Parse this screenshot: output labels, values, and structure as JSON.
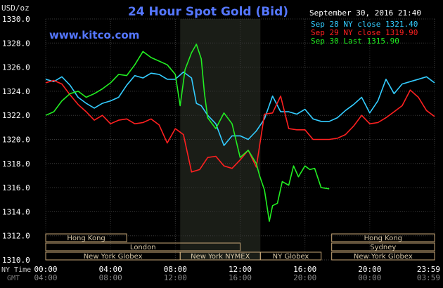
{
  "chart_data": {
    "type": "line",
    "title": "24 Hour Spot Gold (Bid)",
    "watermark": "www.kitco.com",
    "timestamp": "September 30, 2016 21:40",
    "yunit": "USD/oz",
    "ylim": [
      1310,
      1330
    ],
    "yticks": [
      "1330.0",
      "1328.0",
      "1326.0",
      "1324.0",
      "1322.0",
      "1320.0",
      "1318.0",
      "1316.0",
      "1314.0",
      "1312.0",
      "1310.0"
    ],
    "x_ticks_ny": [
      "00:00",
      "04:00",
      "08:00",
      "12:00",
      "16:00",
      "20:00",
      "23:59"
    ],
    "x_ticks_gmt": [
      "04:00",
      "08:00",
      "12:00",
      "16:00",
      "20:00",
      "00:00",
      "03:59"
    ],
    "ny_time_label": "NY Time",
    "gmt_label": "GMT",
    "legend": [
      {
        "label": "Sep 28 NY close 1321.40",
        "color": "#33ccff"
      },
      {
        "label": "Sep 29 NY close 1319.90",
        "color": "#ff2020"
      },
      {
        "label": "Sep 30 Last 1315.90",
        "color": "#22ee22"
      }
    ],
    "highlight_hours": [
      8.3,
      13.25
    ],
    "sessions": [
      {
        "label": "Hong Kong",
        "start": 0,
        "end": 5
      },
      {
        "label": "Hong Kong",
        "start": 17.65,
        "end": 24
      },
      {
        "label": "London",
        "start": 0,
        "end": 12
      },
      {
        "label": "Sydney",
        "start": 17.65,
        "end": 24
      },
      {
        "label": "New York Globex",
        "start": 0,
        "end": 8.3
      },
      {
        "label": "New York NYMEX",
        "start": 8.3,
        "end": 13.25
      },
      {
        "label": "NY Globex",
        "start": 13.25,
        "end": 17.0
      },
      {
        "label": "New York Globex",
        "start": 17.65,
        "end": 24
      }
    ],
    "series": [
      {
        "name": "Sep 28 NY close 1321.40",
        "color": "#33ccff",
        "x": [
          0,
          0.5,
          1,
          1.5,
          2,
          2.5,
          3,
          3.5,
          4,
          4.5,
          5,
          5.5,
          6,
          6.5,
          7,
          7.5,
          8,
          8.5,
          9,
          9.3,
          9.6,
          10,
          10.5,
          11,
          11.5,
          12,
          12.5,
          13,
          13.5,
          14,
          14.5,
          15,
          15.5,
          16,
          16.5,
          17,
          17.5,
          18,
          18.5,
          19,
          19.5,
          20,
          20.5,
          21,
          21.5,
          22,
          22.5,
          23,
          23.5,
          24
        ],
        "y": [
          1325,
          1324.8,
          1325.2,
          1324.5,
          1323.5,
          1323,
          1322.6,
          1323,
          1323.2,
          1323.5,
          1324.5,
          1325.3,
          1325.1,
          1325.5,
          1325.4,
          1325,
          1325,
          1325.6,
          1325.1,
          1323,
          1322.8,
          1322,
          1321.3,
          1319.5,
          1320.3,
          1320.3,
          1320,
          1320.7,
          1321.7,
          1323.6,
          1322.3,
          1322.3,
          1322.1,
          1322.5,
          1321.7,
          1321.5,
          1321.5,
          1321.8,
          1322.4,
          1322.9,
          1323.5,
          1322.2,
          1323.2,
          1325,
          1323.8,
          1324.6,
          1324.8,
          1325,
          1325.2,
          1324.7
        ]
      },
      {
        "name": "Sep 29 NY close 1319.90",
        "color": "#ff2020",
        "x": [
          0,
          0.5,
          1,
          1.5,
          2,
          2.5,
          3,
          3.5,
          4,
          4.5,
          5,
          5.5,
          6,
          6.5,
          7,
          7.5,
          8,
          8.5,
          9,
          9.5,
          10,
          10.5,
          11,
          11.5,
          12,
          12.5,
          13,
          13.5,
          14,
          14.5,
          15,
          15.5,
          16,
          16.5,
          17,
          17.5,
          18,
          18.5,
          19,
          19.5,
          20,
          20.5,
          21,
          21.5,
          22,
          22.5,
          23,
          23.5,
          24
        ],
        "y": [
          1324.7,
          1324.9,
          1324.6,
          1323.7,
          1322.9,
          1322.3,
          1321.6,
          1322,
          1321.3,
          1321.6,
          1321.7,
          1321.3,
          1321.4,
          1321.7,
          1321.2,
          1319.7,
          1320.9,
          1320.4,
          1317.3,
          1317.5,
          1318.5,
          1318.6,
          1317.8,
          1317.6,
          1318.3,
          1319.1,
          1317.7,
          1322.1,
          1322.2,
          1323.6,
          1320.9,
          1320.8,
          1320.8,
          1320,
          1320,
          1320,
          1320.1,
          1320.4,
          1321.1,
          1322,
          1321.3,
          1321.4,
          1321.8,
          1322.3,
          1322.8,
          1324.1,
          1323.5,
          1322.4,
          1321.9
        ]
      },
      {
        "name": "Sep 30 Last 1315.90",
        "color": "#22ee22",
        "x": [
          0,
          0.5,
          1,
          1.5,
          2,
          2.5,
          3,
          3.5,
          4,
          4.5,
          5,
          5.5,
          6,
          6.5,
          7,
          7.5,
          8,
          8.3,
          8.6,
          9,
          9.3,
          9.6,
          9.8,
          10,
          10.5,
          11,
          11.5,
          12,
          12.5,
          13,
          13.2,
          13.5,
          13.8,
          14,
          14.3,
          14.6,
          15,
          15.3,
          15.6,
          16,
          16.3,
          16.6,
          17,
          17.5
        ],
        "y": [
          1322,
          1322.3,
          1323.2,
          1323.8,
          1324,
          1323.5,
          1323.8,
          1324.2,
          1324.7,
          1325.4,
          1325.3,
          1326.2,
          1327.3,
          1326.8,
          1326.5,
          1326.2,
          1325.4,
          1322.8,
          1325.8,
          1327.2,
          1327.9,
          1326.7,
          1323.8,
          1321.8,
          1320.9,
          1322.2,
          1321.3,
          1318.5,
          1319.1,
          1318,
          1317,
          1315.8,
          1313.2,
          1314.5,
          1314.7,
          1316.5,
          1316.2,
          1317.8,
          1316.9,
          1317.8,
          1317.5,
          1317.6,
          1316,
          1315.9
        ]
      }
    ]
  }
}
